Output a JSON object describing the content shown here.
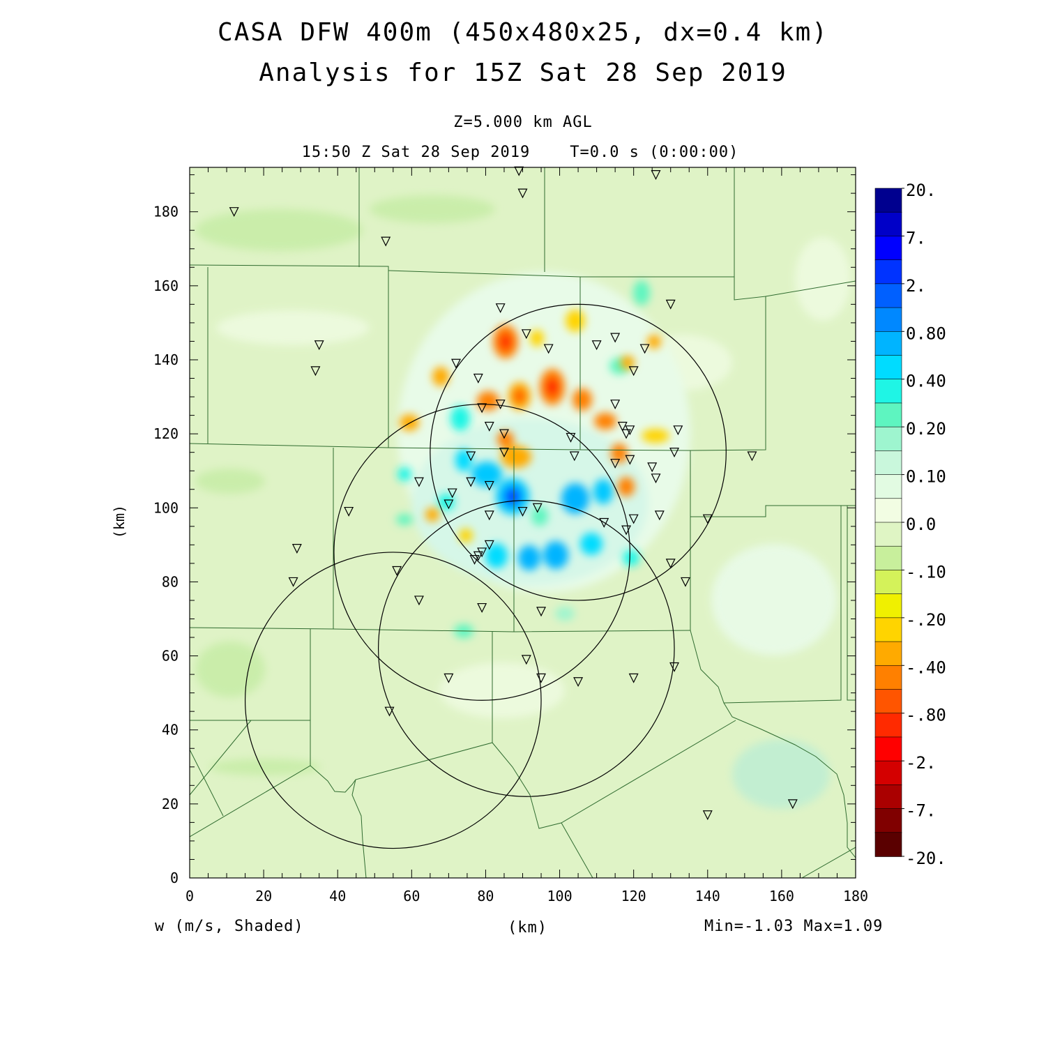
{
  "title_line1": "CASA DFW 400m (450x480x25, dx=0.4 km)",
  "title_line2": "Analysis for 15Z Sat 28 Sep 2019",
  "level_label": "Z=5.000 km AGL",
  "time_label": "15:50 Z Sat 28 Sep 2019    T=0.0 s (0:00:00)",
  "x_axis_label": "(km)",
  "y_axis_label": "(km)",
  "field_label": "w (m/s, Shaded)",
  "minmax_label": "Min=-1.03 Max=1.09",
  "x_ticks": [
    "0",
    "20",
    "40",
    "60",
    "80",
    "100",
    "120",
    "140",
    "160",
    "180"
  ],
  "y_ticks": [
    "0",
    "20",
    "40",
    "60",
    "80",
    "100",
    "120",
    "140",
    "160",
    "180"
  ],
  "x_range": [
    0,
    180
  ],
  "y_range": [
    0,
    192
  ],
  "colorbar_labels": [
    "20.",
    "7.",
    "2.",
    "0.80",
    "0.40",
    "0.20",
    "0.10",
    "0.0",
    "-.10",
    "-.20",
    "-.40",
    "-.80",
    "-2.",
    "-7.",
    "-20."
  ],
  "colorbar_colors": [
    "#00008f",
    "#0000c8",
    "#0000ff",
    "#0033ff",
    "#0060ff",
    "#0088ff",
    "#00b4ff",
    "#00dcff",
    "#1ff5e5",
    "#5ef5c0",
    "#9ef5cf",
    "#c9f7dc",
    "#e2fbe2",
    "#f2fde3",
    "#dff5c4",
    "#c8ef9c",
    "#d4f25a",
    "#f0f000",
    "#ffd400",
    "#ffaa00",
    "#ff8000",
    "#ff5500",
    "#ff2a00",
    "#ff0000",
    "#d40000",
    "#aa0000",
    "#800000",
    "#5a0000"
  ],
  "radar_circles_km": [
    {
      "x": 105,
      "y": 115,
      "r": 40
    },
    {
      "x": 79,
      "y": 88,
      "r": 40
    },
    {
      "x": 91,
      "y": 62,
      "r": 40
    },
    {
      "x": 55,
      "y": 48,
      "r": 40
    }
  ],
  "stations_km": [
    [
      12,
      180
    ],
    [
      89,
      191
    ],
    [
      90,
      185
    ],
    [
      126,
      190
    ],
    [
      53,
      172
    ],
    [
      35,
      144
    ],
    [
      34,
      137
    ],
    [
      84,
      154
    ],
    [
      91,
      147
    ],
    [
      97,
      143
    ],
    [
      110,
      144
    ],
    [
      115,
      146
    ],
    [
      123,
      143
    ],
    [
      130,
      155
    ],
    [
      72,
      139
    ],
    [
      78,
      135
    ],
    [
      79,
      127
    ],
    [
      84,
      128
    ],
    [
      81,
      122
    ],
    [
      85,
      120
    ],
    [
      120,
      137
    ],
    [
      115,
      128
    ],
    [
      117,
      122
    ],
    [
      118,
      120
    ],
    [
      119,
      121
    ],
    [
      132,
      121
    ],
    [
      131,
      115
    ],
    [
      103,
      119
    ],
    [
      104,
      114
    ],
    [
      85,
      115
    ],
    [
      76,
      114
    ],
    [
      115,
      112
    ],
    [
      119,
      113
    ],
    [
      125,
      111
    ],
    [
      126,
      108
    ],
    [
      62,
      107
    ],
    [
      71,
      104
    ],
    [
      76,
      107
    ],
    [
      81,
      106
    ],
    [
      70,
      101
    ],
    [
      43,
      99
    ],
    [
      81,
      98
    ],
    [
      90,
      99
    ],
    [
      94,
      100
    ],
    [
      112,
      96
    ],
    [
      118,
      94
    ],
    [
      120,
      97
    ],
    [
      127,
      98
    ],
    [
      140,
      97
    ],
    [
      152,
      114
    ],
    [
      29,
      89
    ],
    [
      28,
      80
    ],
    [
      56,
      83
    ],
    [
      62,
      75
    ],
    [
      78,
      87
    ],
    [
      79,
      88
    ],
    [
      81,
      90
    ],
    [
      77,
      86
    ],
    [
      79,
      73
    ],
    [
      95,
      72
    ],
    [
      130,
      85
    ],
    [
      134,
      80
    ],
    [
      91,
      59
    ],
    [
      95,
      54
    ],
    [
      105,
      53
    ],
    [
      70,
      54
    ],
    [
      54,
      45
    ],
    [
      120,
      54
    ],
    [
      131,
      57
    ],
    [
      140,
      17
    ],
    [
      163,
      20
    ]
  ]
}
